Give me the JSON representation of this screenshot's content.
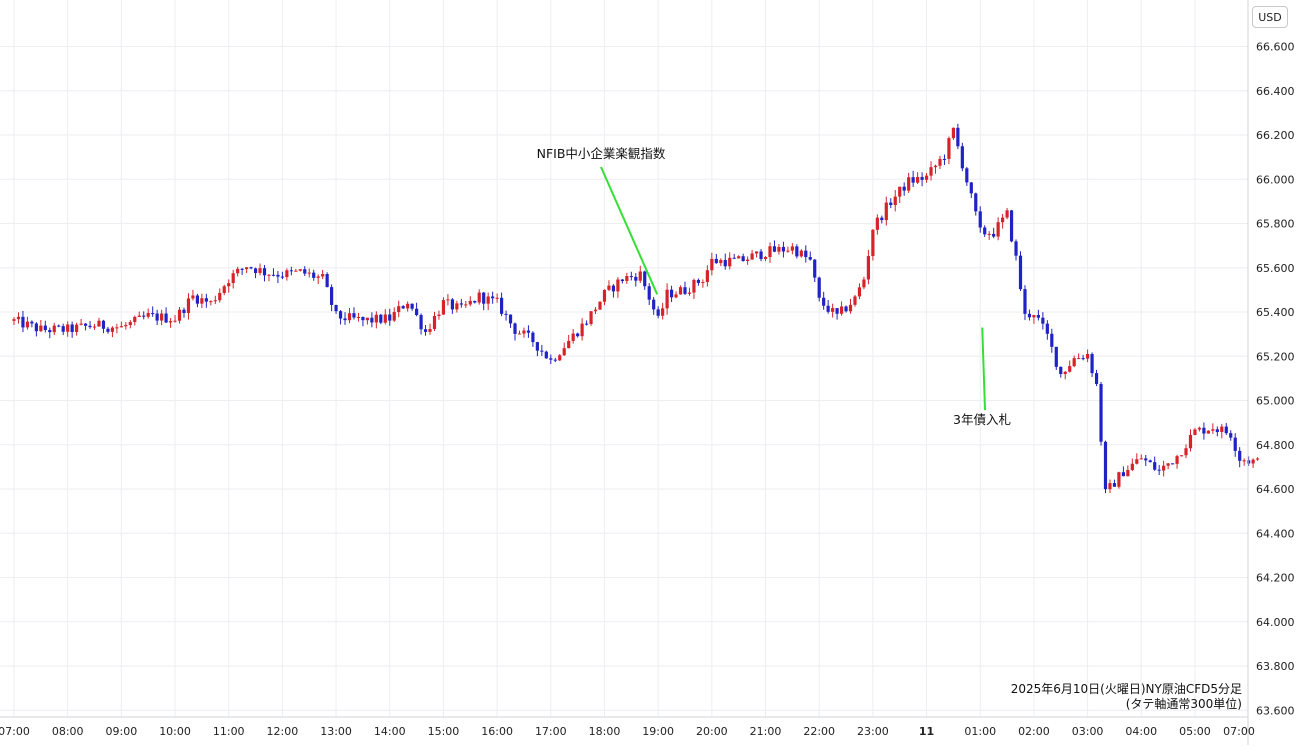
{
  "currency": "USD",
  "caption": {
    "line1": "2025年6月10日(火曜日)NY原油CFD5分足",
    "line2": "(タテ軸通常300単位)"
  },
  "annotations": [
    {
      "text": "NFIB中小企業楽観指数",
      "time": "19:00",
      "price": 65.48
    },
    {
      "text": "3年債入札",
      "time": "01:00",
      "price": 65.33
    }
  ],
  "colors": {
    "up": "#d6232a",
    "down": "#1f22c4",
    "grid": "#eceef2",
    "leader": "#35e035"
  },
  "chart_data": {
    "type": "candlestick",
    "interval": "5m",
    "ylim": [
      63.6,
      66.8
    ],
    "y_ticks": [
      "66.600",
      "66.400",
      "66.200",
      "66.000",
      "65.800",
      "65.600",
      "65.400",
      "65.200",
      "65.000",
      "64.800",
      "64.600",
      "64.400",
      "64.200",
      "64.000",
      "63.800",
      "63.600"
    ],
    "x_ticks": [
      "07:00",
      "08:00",
      "09:00",
      "10:00",
      "11:00",
      "12:00",
      "13:00",
      "14:00",
      "15:00",
      "16:00",
      "17:00",
      "18:00",
      "19:00",
      "20:00",
      "21:00",
      "22:00",
      "23:00",
      "11",
      "01:00",
      "02:00",
      "03:00",
      "04:00",
      "05:00",
      "07:00"
    ],
    "close_path": [
      [
        "07:00",
        65.36
      ],
      [
        "07:30",
        65.32
      ],
      [
        "08:00",
        65.32
      ],
      [
        "08:30",
        65.34
      ],
      [
        "09:00",
        65.33
      ],
      [
        "09:30",
        65.38
      ],
      [
        "10:00",
        65.37
      ],
      [
        "10:20",
        65.47
      ],
      [
        "10:40",
        65.44
      ],
      [
        "11:00",
        65.55
      ],
      [
        "11:20",
        65.61
      ],
      [
        "11:40",
        65.58
      ],
      [
        "12:00",
        65.57
      ],
      [
        "12:20",
        65.58
      ],
      [
        "12:45",
        65.55
      ],
      [
        "13:00",
        65.38
      ],
      [
        "13:30",
        65.36
      ],
      [
        "14:00",
        65.37
      ],
      [
        "14:20",
        65.45
      ],
      [
        "14:40",
        65.31
      ],
      [
        "15:00",
        65.44
      ],
      [
        "15:20",
        65.41
      ],
      [
        "15:40",
        65.47
      ],
      [
        "16:00",
        65.44
      ],
      [
        "16:20",
        65.32
      ],
      [
        "16:40",
        65.27
      ],
      [
        "17:00",
        65.18
      ],
      [
        "17:20",
        65.27
      ],
      [
        "17:40",
        65.36
      ],
      [
        "18:00",
        65.48
      ],
      [
        "18:20",
        65.55
      ],
      [
        "18:40",
        65.57
      ],
      [
        "19:00",
        65.36
      ],
      [
        "19:10",
        65.48
      ],
      [
        "19:30",
        65.5
      ],
      [
        "19:50",
        65.55
      ],
      [
        "20:00",
        65.63
      ],
      [
        "20:30",
        65.63
      ],
      [
        "21:00",
        65.67
      ],
      [
        "21:30",
        65.69
      ],
      [
        "21:50",
        65.63
      ],
      [
        "22:00",
        65.45
      ],
      [
        "22:20",
        65.38
      ],
      [
        "22:40",
        65.46
      ],
      [
        "22:50",
        65.55
      ],
      [
        "23:00",
        65.78
      ],
      [
        "23:20",
        65.9
      ],
      [
        "23:40",
        65.99
      ],
      [
        "00:00",
        66.01
      ],
      [
        "00:20",
        66.11
      ],
      [
        "00:30",
        66.22
      ],
      [
        "00:40",
        66.07
      ],
      [
        "01:00",
        65.76
      ],
      [
        "01:15",
        65.76
      ],
      [
        "01:30",
        65.84
      ],
      [
        "01:40",
        65.64
      ],
      [
        "01:50",
        65.38
      ],
      [
        "02:00",
        65.4
      ],
      [
        "02:15",
        65.29
      ],
      [
        "02:30",
        65.12
      ],
      [
        "02:45",
        65.19
      ],
      [
        "03:00",
        65.21
      ],
      [
        "03:10",
        65.07
      ],
      [
        "03:20",
        64.58
      ],
      [
        "03:40",
        64.68
      ],
      [
        "04:00",
        64.74
      ],
      [
        "04:20",
        64.68
      ],
      [
        "04:40",
        64.75
      ],
      [
        "05:00",
        64.86
      ],
      [
        "05:20",
        64.88
      ],
      [
        "05:40",
        64.85
      ],
      [
        "05:50",
        64.74
      ],
      [
        "06:10",
        64.72
      ]
    ]
  }
}
